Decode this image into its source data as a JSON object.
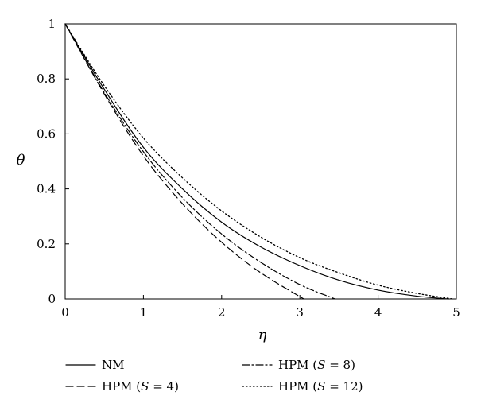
{
  "chart_data": {
    "type": "line",
    "title": "",
    "xlabel": "η",
    "ylabel": "θ",
    "xlim": [
      0,
      5
    ],
    "ylim": [
      0,
      1
    ],
    "x_ticks": [
      "0",
      "1",
      "2",
      "3",
      "4",
      "5"
    ],
    "y_ticks": [
      "0",
      "0.2",
      "0.4",
      "0.6",
      "0.8",
      "1"
    ],
    "grid": false,
    "legend_position": "bottom",
    "series": [
      {
        "name": "NM",
        "label_parts": [
          "NM",
          "",
          ""
        ],
        "style": "solid",
        "x": [
          0,
          0.5,
          1.0,
          1.5,
          2.0,
          2.5,
          3.0,
          3.5,
          4.0,
          4.5,
          4.9
        ],
        "y": [
          1.0,
          0.762,
          0.551,
          0.4,
          0.279,
          0.189,
          0.121,
          0.068,
          0.032,
          0.01,
          0.0
        ]
      },
      {
        "name": "HPM (S = 4)",
        "label_parts": [
          "HPM (",
          "S",
          " = 4)"
        ],
        "style": "dashed",
        "x": [
          0,
          0.5,
          1.0,
          1.5,
          2.0,
          2.5,
          3.05
        ],
        "y": [
          1.0,
          0.745,
          0.52,
          0.346,
          0.206,
          0.095,
          0.0
        ]
      },
      {
        "name": "HPM (S = 8)",
        "label_parts": [
          "HPM (",
          "S",
          " = 8)"
        ],
        "style": "dashdot",
        "x": [
          0,
          0.5,
          1.0,
          1.5,
          2.0,
          2.5,
          3.0,
          3.45
        ],
        "y": [
          1.0,
          0.75,
          0.535,
          0.368,
          0.236,
          0.133,
          0.052,
          0.0
        ]
      },
      {
        "name": "HPM (S = 12)",
        "label_parts": [
          "HPM (",
          "S",
          " = 12)"
        ],
        "style": "dotted",
        "x": [
          0,
          0.5,
          1.0,
          1.5,
          2.0,
          2.5,
          3.0,
          3.5,
          4.0,
          4.5,
          4.95
        ],
        "y": [
          1.0,
          0.775,
          0.585,
          0.44,
          0.32,
          0.225,
          0.15,
          0.095,
          0.05,
          0.02,
          0.0
        ]
      }
    ]
  }
}
